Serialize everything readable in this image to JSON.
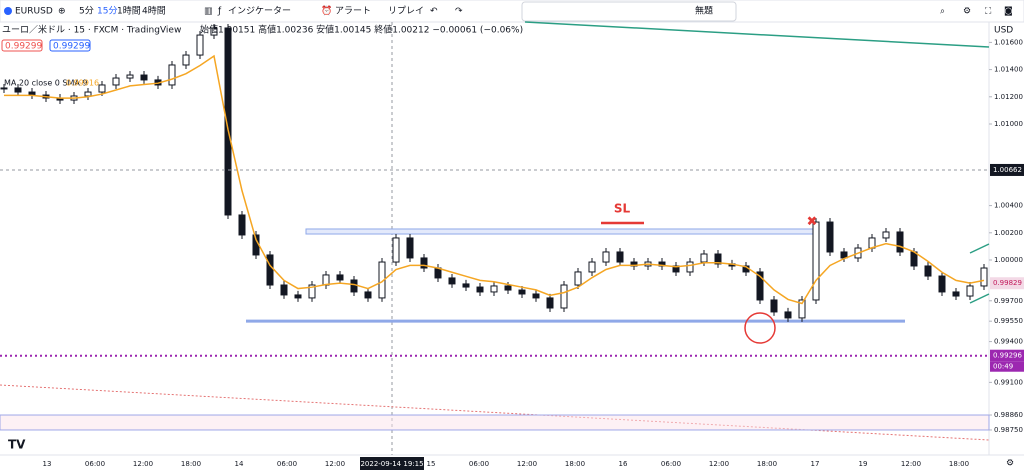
{
  "toolbar": {
    "symbol": "EURUSD",
    "intervals": [
      "5分",
      "15分",
      "1時間",
      "4時間"
    ],
    "indicators": "インジケーター",
    "alert": "アラート",
    "replay": "リプレイ",
    "layout": "無題"
  },
  "legend": {
    "title": "ユーロ／米ドル · 15 · FXCM · TradingView",
    "ohlc": "始値1.00151 高値1.00236 安値1.00145 終値1.00212 −0.00061 (−0.06%)",
    "sell": "0.99299",
    "buy": "0.99299",
    "ma": "MA 20 close 0 SMA 9",
    "ma_value": "0.99916"
  },
  "chart_data": {
    "type": "candlestick",
    "currency": "USD",
    "ylim": [
      0.98566,
      1.0175
    ],
    "yticks": [
      {
        "value": 1.016,
        "label": "1.01600"
      },
      {
        "value": 1.014,
        "label": "1.01400"
      },
      {
        "value": 1.012,
        "label": "1.01200"
      },
      {
        "value": 1.01,
        "label": "1.01000"
      },
      {
        "value": 1.004,
        "label": "1.00400"
      },
      {
        "value": 1.002,
        "label": "1.00200"
      },
      {
        "value": 1,
        "label": "1.00000"
      },
      {
        "value": 0.997,
        "label": "0.99700"
      },
      {
        "value": 0.9955,
        "label": "0.99550"
      },
      {
        "value": 0.994,
        "label": "0.99400"
      },
      {
        "value": 0.991,
        "label": "0.99100"
      },
      {
        "value": 0.9886,
        "label": "0.98860"
      },
      {
        "value": 0.9875,
        "label": "0.98750"
      }
    ],
    "x": [
      "13",
      "06:00",
      "12:00",
      "18:00",
      "14",
      "06:00",
      "12:00",
      null,
      "15",
      "06:00",
      "12:00",
      "18:00",
      "16",
      "06:00",
      "12:00",
      "18:00",
      "17",
      "19",
      "12:00",
      "18:00"
    ],
    "crosshair_label": "2022-09-14 19:15",
    "closes": [
      1.01265,
      1.01235,
      1.01213,
      1.01191,
      1.01176,
      1.01206,
      1.01235,
      1.01287,
      1.01338,
      1.0136,
      1.01324,
      1.01287,
      1.01434,
      1.01507,
      1.01654,
      1.01706,
      1.00331,
      1.00184,
      1.00037,
      0.99816,
      0.99743,
      0.99721,
      0.99816,
      0.9989,
      0.99853,
      0.99765,
      0.99721,
      0.99985,
      1.00162,
      1.00015,
      0.99941,
      0.99868,
      0.99824,
      0.99801,
      0.99765,
      0.99809,
      0.99779,
      0.9975,
      0.99721,
      0.99647,
      0.99816,
      0.99912,
      0.99985,
      1.00059,
      0.99985,
      0.99956,
      0.99985,
      0.99956,
      0.99912,
      0.99985,
      1.00044,
      0.99971,
      0.99956,
      0.99912,
      0.99706,
      0.99618,
      0.99574,
      0.99706,
      1.00279,
      1.00059,
      1.00015,
      1.00088,
      1.00162,
      1.00206,
      1.00059,
      0.99956,
      0.99882,
      0.99765,
      0.99735,
      0.99809,
      0.99941
    ],
    "candle_color": "#131722",
    "ma": {
      "color": "#f5a623",
      "values": [
        1.0121,
        1.0121,
        1.0121,
        1.012,
        1.0119,
        1.0119,
        1.012,
        1.0122,
        1.0125,
        1.0128,
        1.0129,
        1.013,
        1.0133,
        1.0137,
        1.0143,
        1.015,
        1.0096,
        1.0051,
        1.0015,
        0.9996,
        0.9985,
        0.9979,
        0.998,
        0.9982,
        0.9983,
        0.9982,
        0.9979,
        0.9984,
        0.9993,
        0.9996,
        0.9996,
        0.9994,
        0.9991,
        0.9988,
        0.9985,
        0.9984,
        0.9982,
        0.998,
        0.9978,
        0.9974,
        0.9976,
        0.998,
        0.9987,
        0.9993,
        0.9996,
        0.9996,
        0.9997,
        0.9996,
        0.9995,
        0.9996,
        0.9998,
        0.9998,
        0.9997,
        0.9995,
        0.9988,
        0.9978,
        0.9971,
        0.9968,
        0.9985,
        0.9996,
        1.0001,
        1.0005,
        1.0009,
        1.0012,
        1.001,
        1.0006,
        0.9999,
        0.9991,
        0.9985,
        0.9983,
        0.9985
      ]
    },
    "sl_label": "SL",
    "support": {
      "value": 0.9955,
      "color": "#8fa8e8"
    },
    "resistance_box": {
      "values": [
        1.00228,
        1.00191
      ],
      "color": "#8fa8e8"
    },
    "alert_line": {
      "value": 0.99296,
      "color": "#9c27b0"
    },
    "band": {
      "values": [
        0.9886,
        0.9875
      ],
      "color": "#9fa8e8"
    },
    "price_labels": [
      {
        "value": 1.00662,
        "label": "1.00662",
        "color": "#131722"
      },
      {
        "value": 0.99829,
        "label": "0.99829",
        "color": "#f3d9e6"
      },
      {
        "value": 0.99296,
        "label": "0.99296",
        "color": "#9c27b0"
      }
    ],
    "countdown": "00:49"
  }
}
